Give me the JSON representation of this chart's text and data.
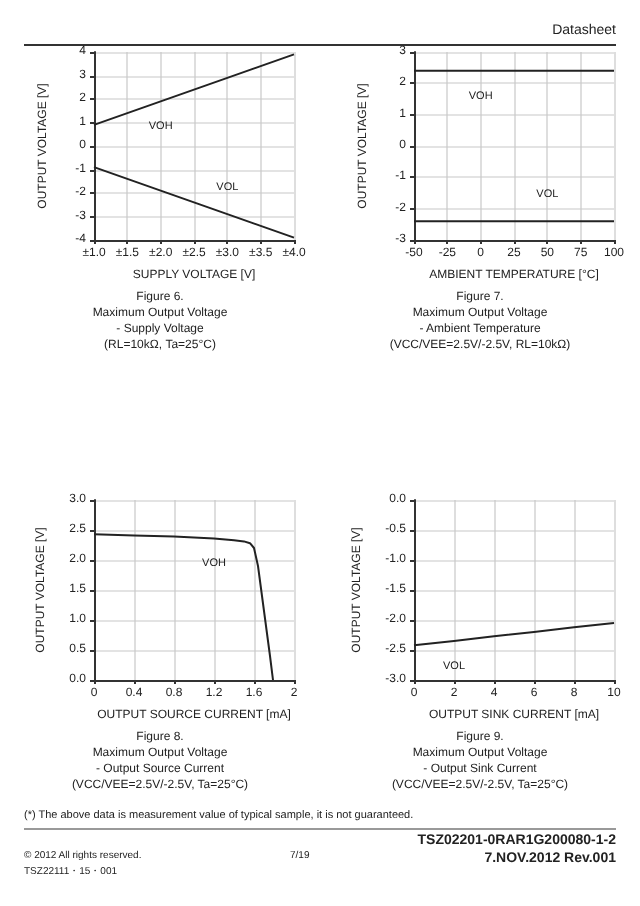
{
  "chart_data": [
    {
      "type": "line",
      "title": "Figure 6.\nMaximum Output Voltage\n- Supply Voltage\n(RL=10kΩ, Ta=25°C)",
      "xlabel": "SUPPLY VOLTAGE [V]",
      "ylabel": "OUTPUT VOLTAGE [V]",
      "annotations": [
        "Datasheet"
      ],
      "x": [
        1.0,
        1.5,
        2.0,
        2.5,
        3.0,
        3.5,
        4.0
      ],
      "series": [
        {
          "name": "VOH",
          "color": "#222222",
          "values": [
            0.9,
            1.4,
            1.9,
            2.4,
            2.9,
            3.4,
            3.9
          ]
        },
        {
          "name": "VOL",
          "color": "#222222",
          "values": [
            -0.9,
            -1.4,
            -1.9,
            -2.4,
            -2.9,
            -3.4,
            -3.9
          ]
        }
      ],
      "xlim": [
        1.0,
        4.0
      ],
      "xticks": [
        {
          "value": 1.0,
          "label": "±1.0"
        },
        {
          "value": 1.5,
          "label": "±1.5"
        },
        {
          "value": 2.0,
          "label": "±2.0"
        },
        {
          "value": 2.5,
          "label": "±2.5"
        },
        {
          "value": 3.0,
          "label": "±3.0"
        },
        {
          "value": 3.5,
          "label": "±3.5"
        },
        {
          "value": 4.0,
          "label": "±4.0"
        }
      ],
      "ylim": [
        -4,
        4
      ],
      "yticks": [
        -4,
        -3,
        -2,
        -1,
        0,
        1,
        2,
        3,
        4
      ],
      "grid": true,
      "legend": false,
      "marker": "none",
      "line_style": "solid"
    },
    {
      "type": "line",
      "title": "Figure 7.\nMaximum Output Voltage\n- Ambient Temperature\n(VCC/VEE=2.5V/-2.5V, RL=10kΩ)",
      "xlabel": "AMBIENT TEMPERATURE [°C]",
      "ylabel": "OUTPUT VOLTAGE [V]",
      "x": [
        -50,
        -25,
        0,
        25,
        50,
        75,
        100
      ],
      "series": [
        {
          "name": "VOH",
          "color": "#222222",
          "values": [
            2.4,
            2.4,
            2.4,
            2.4,
            2.4,
            2.4,
            2.4
          ]
        },
        {
          "name": "VOL",
          "color": "#222222",
          "values": [
            -2.4,
            -2.4,
            -2.4,
            -2.4,
            -2.4,
            -2.4,
            -2.4
          ]
        }
      ],
      "xlim": [
        -50,
        100
      ],
      "xticks": [
        -50,
        -25,
        0,
        25,
        50,
        75,
        100
      ],
      "ylim": [
        -3,
        3
      ],
      "yticks": [
        -3,
        -2,
        -1,
        0,
        1,
        2,
        3
      ],
      "grid": true,
      "legend": false,
      "marker": "none",
      "line_style": "solid"
    },
    {
      "type": "line",
      "title": "Figure 8.\nMaximum Output Voltage\n- Output Source Current\n(VCC/VEE=2.5V/-2.5V, Ta=25°C)",
      "xlabel": "OUTPUT SOURCE CURRENT [mA]",
      "ylabel": "OUTPUT VOLTAGE [V]",
      "x": [
        0,
        0.4,
        0.8,
        1.2,
        1.4,
        1.5,
        1.56,
        1.6,
        1.64,
        1.68,
        1.72,
        1.76,
        1.79
      ],
      "series": [
        {
          "name": "VOH",
          "color": "#222222",
          "values": [
            2.43,
            2.41,
            2.39,
            2.36,
            2.33,
            2.31,
            2.28,
            2.2,
            1.9,
            1.4,
            0.9,
            0.4,
            0.0
          ]
        }
      ],
      "xlim": [
        0,
        2
      ],
      "xticks": [
        0,
        0.4,
        0.8,
        1.2,
        1.6,
        2
      ],
      "ylim": [
        0,
        3
      ],
      "yticks": [
        {
          "value": 0,
          "label": "0.0"
        },
        0.5,
        {
          "value": 1,
          "label": "1.0"
        },
        1.5,
        {
          "value": 2,
          "label": "2.0"
        },
        2.5,
        {
          "value": 3,
          "label": "3.0"
        }
      ],
      "grid": true,
      "legend": false,
      "marker": "none",
      "line_style": "solid"
    },
    {
      "type": "line",
      "title": "Figure 9.\nMaximum Output Voltage\n- Output Sink Current\n(VCC/VEE=2.5V/-2.5V, Ta=25°C)",
      "xlabel": "OUTPUT SINK CURRENT [mA]",
      "ylabel": "OUTPUT VOLTAGE [V]",
      "annotations": [
        "(*) The above data is measurement value of typical sample, it is not guaranteed.",
        "© 2012 All rights reserved.",
        "TSZ22111・15・001",
        "7/19",
        "TSZ02201-0RAR1G200080-1-2",
        "7.NOV.2012 Rev.001"
      ],
      "x": [
        0,
        2,
        4,
        6,
        8,
        10
      ],
      "series": [
        {
          "name": "VOL",
          "color": "#222222",
          "values": [
            -2.42,
            -2.35,
            -2.27,
            -2.2,
            -2.12,
            -2.05
          ]
        }
      ],
      "xlim": [
        0,
        10
      ],
      "xticks": [
        0,
        2,
        4,
        6,
        8,
        10
      ],
      "ylim": [
        -3,
        0
      ],
      "yticks": [
        {
          "value": -3,
          "label": "-3.0"
        },
        -2.5,
        {
          "value": -2,
          "label": "-2.0"
        },
        -1.5,
        {
          "value": -1,
          "label": "-1.0"
        },
        -0.5,
        {
          "value": 0,
          "label": "0.0"
        }
      ],
      "grid": true,
      "legend": false,
      "marker": "none",
      "line_style": "solid"
    }
  ]
}
